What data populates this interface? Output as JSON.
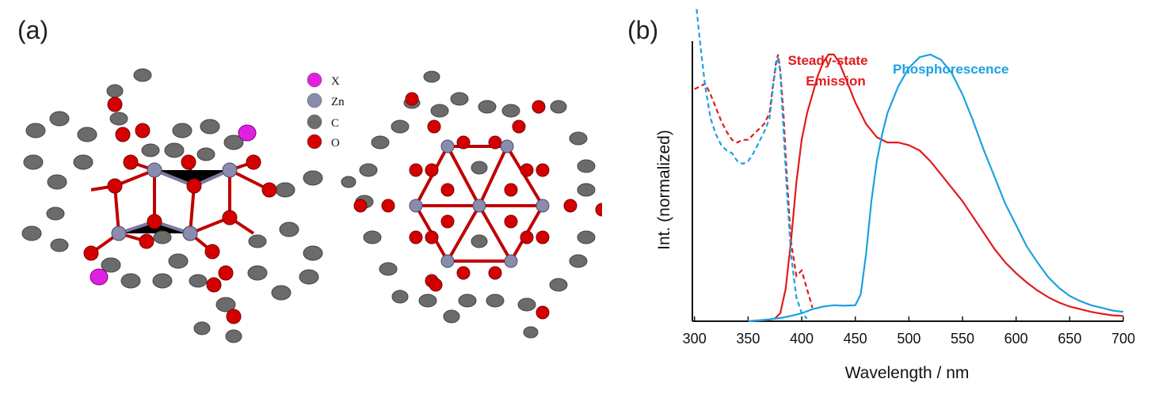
{
  "panels": {
    "a": "(a)",
    "b": "(b)"
  },
  "legend": [
    {
      "symbol": "X",
      "color": "#e020e0"
    },
    {
      "symbol": "Zn",
      "color": "#8a8cae"
    },
    {
      "symbol": "C",
      "color": "#6e6e6e"
    },
    {
      "symbol": "O",
      "color": "#d40000"
    }
  ],
  "chart_data": {
    "type": "line",
    "xlabel": "Wavelength / nm",
    "ylabel": "Int. (normalized)",
    "xlim": [
      298,
      700
    ],
    "ylim": [
      0,
      1.05
    ],
    "xticks": [
      300,
      350,
      400,
      450,
      500,
      550,
      600,
      650,
      700
    ],
    "grid": false,
    "series": [
      {
        "label": "Steady-state Emission",
        "color": "#e31a1c",
        "style": "solid",
        "x": [
          350,
          360,
          370,
          375,
          380,
          385,
          390,
          395,
          400,
          405,
          410,
          415,
          420,
          425,
          430,
          435,
          440,
          450,
          460,
          470,
          480,
          490,
          500,
          510,
          520,
          530,
          540,
          550,
          560,
          570,
          580,
          590,
          600,
          610,
          620,
          630,
          640,
          650,
          660,
          670,
          680,
          690,
          700
        ],
        "y": [
          0.0,
          0.003,
          0.006,
          0.01,
          0.03,
          0.12,
          0.3,
          0.52,
          0.68,
          0.78,
          0.85,
          0.92,
          0.97,
          1.0,
          1.0,
          0.97,
          0.92,
          0.82,
          0.74,
          0.69,
          0.67,
          0.67,
          0.66,
          0.64,
          0.6,
          0.55,
          0.5,
          0.45,
          0.39,
          0.33,
          0.27,
          0.22,
          0.18,
          0.145,
          0.115,
          0.09,
          0.07,
          0.055,
          0.045,
          0.035,
          0.028,
          0.022,
          0.02
        ]
      },
      {
        "label": "Phosphorescence",
        "color": "#1ba1e2",
        "style": "solid",
        "x": [
          350,
          360,
          370,
          380,
          390,
          400,
          410,
          420,
          430,
          440,
          450,
          455,
          460,
          465,
          470,
          475,
          480,
          490,
          500,
          510,
          520,
          530,
          540,
          550,
          560,
          570,
          580,
          590,
          600,
          610,
          620,
          630,
          640,
          650,
          660,
          670,
          680,
          690,
          700
        ],
        "y": [
          0.0,
          0.003,
          0.007,
          0.012,
          0.02,
          0.03,
          0.045,
          0.055,
          0.06,
          0.058,
          0.06,
          0.1,
          0.25,
          0.45,
          0.6,
          0.7,
          0.78,
          0.88,
          0.95,
          0.99,
          1.0,
          0.98,
          0.93,
          0.85,
          0.75,
          0.64,
          0.54,
          0.44,
          0.36,
          0.28,
          0.22,
          0.165,
          0.125,
          0.095,
          0.075,
          0.06,
          0.05,
          0.04,
          0.035
        ]
      },
      {
        "label": "",
        "color": "#e31a1c",
        "style": "dashed",
        "x": [
          300,
          305,
          310,
          315,
          320,
          325,
          330,
          335,
          340,
          345,
          350,
          355,
          360,
          365,
          370,
          373,
          376,
          378,
          380,
          383,
          386,
          390,
          395,
          400,
          405,
          410
        ],
        "y": [
          0.87,
          0.88,
          0.89,
          0.85,
          0.8,
          0.75,
          0.71,
          0.68,
          0.67,
          0.68,
          0.68,
          0.7,
          0.72,
          0.74,
          0.78,
          0.88,
          0.97,
          1.0,
          0.94,
          0.78,
          0.55,
          0.3,
          0.17,
          0.19,
          0.12,
          0.05
        ]
      },
      {
        "label": "",
        "color": "#1ba1e2",
        "style": "dashed",
        "x": [
          302,
          305,
          310,
          315,
          320,
          325,
          330,
          335,
          340,
          345,
          350,
          355,
          360,
          365,
          370,
          373,
          376,
          378,
          380,
          383,
          386,
          390,
          395,
          400,
          405
        ],
        "y": [
          1.21,
          1.05,
          0.88,
          0.76,
          0.7,
          0.66,
          0.64,
          0.63,
          0.6,
          0.59,
          0.6,
          0.63,
          0.67,
          0.71,
          0.76,
          0.87,
          0.96,
          0.99,
          0.93,
          0.72,
          0.5,
          0.25,
          0.09,
          0.03,
          0.01
        ]
      }
    ]
  }
}
